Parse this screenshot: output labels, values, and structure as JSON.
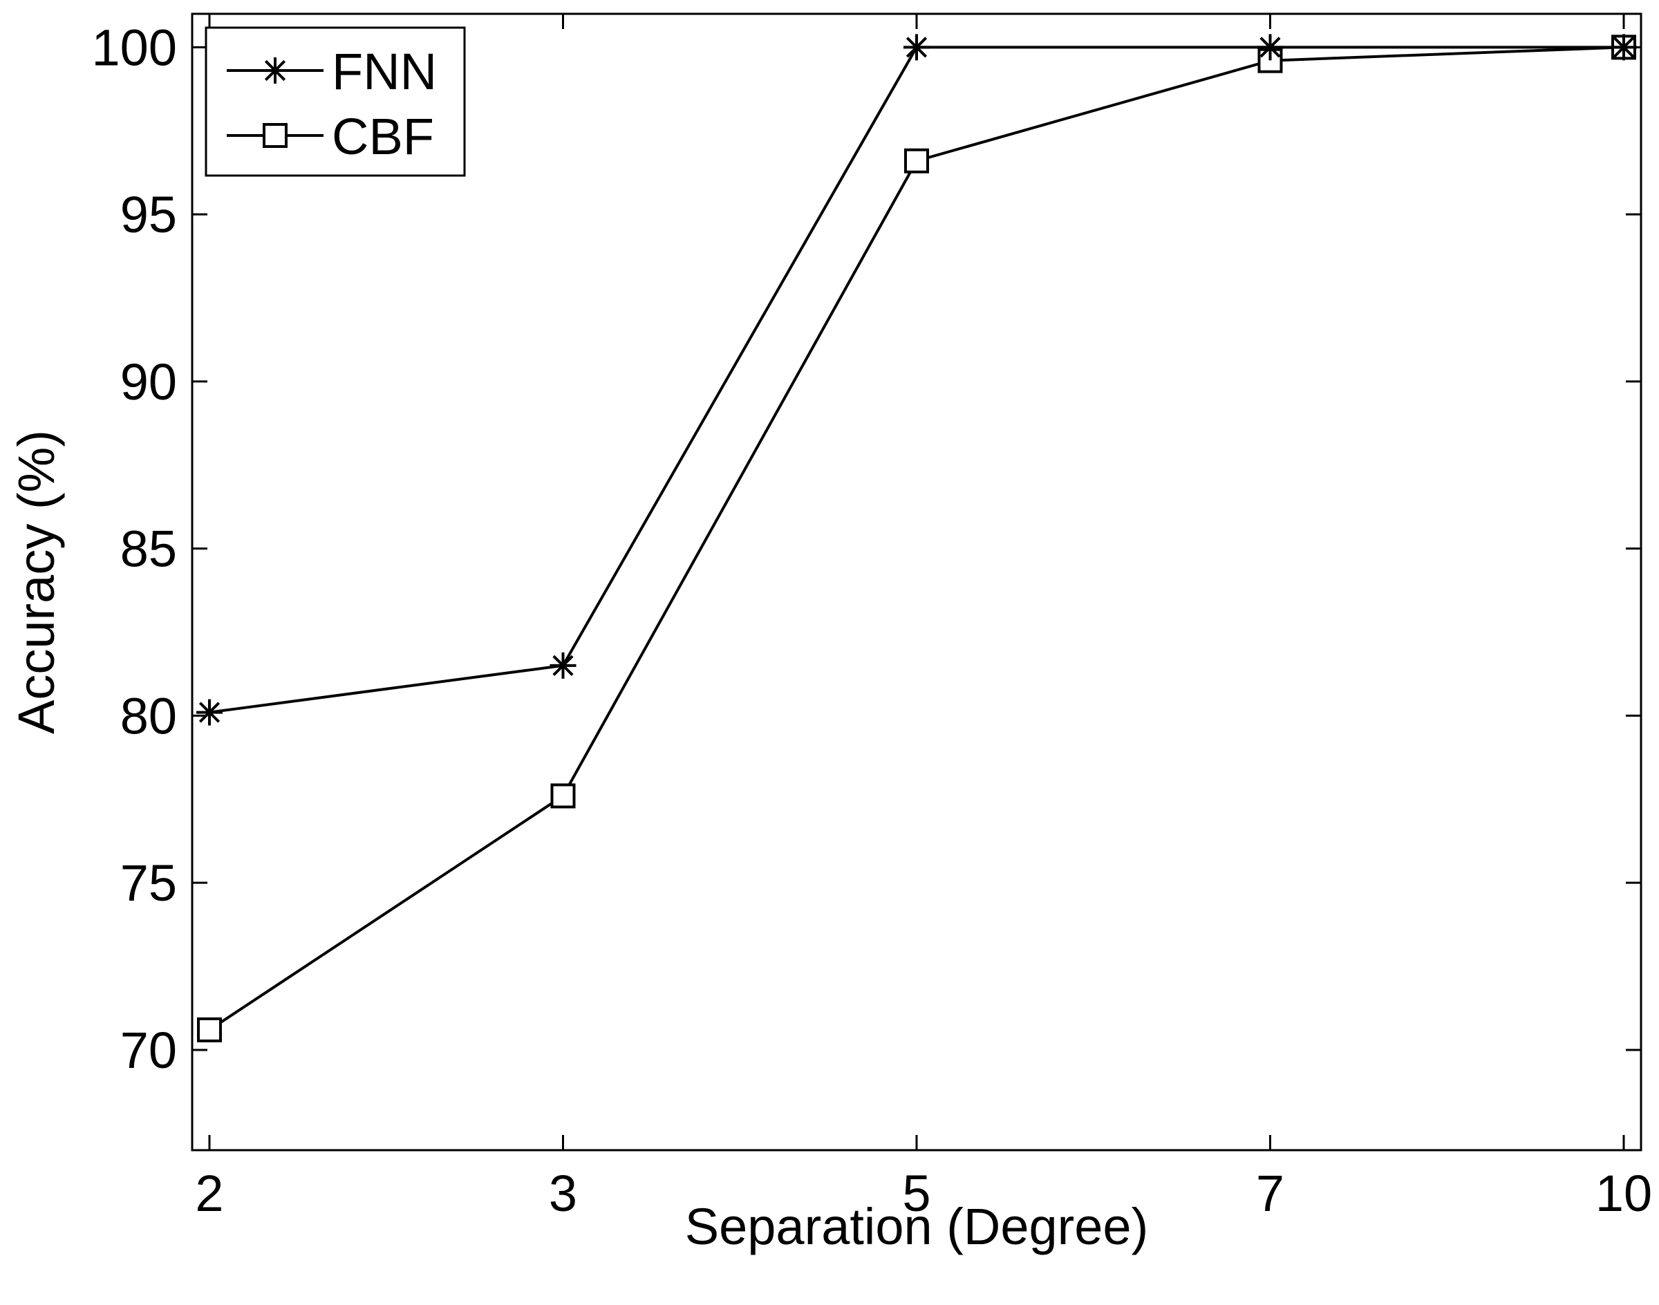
{
  "chart_data": {
    "type": "line",
    "xlabel": "Separation (Degree)",
    "ylabel": "Accuracy (%)",
    "categories": [
      "2",
      "3",
      "5",
      "7",
      "10"
    ],
    "ylim": [
      67,
      101
    ],
    "yticks": [
      70,
      75,
      80,
      85,
      90,
      95,
      100
    ],
    "grid": false,
    "legend_position": "top-left",
    "series": [
      {
        "name": "FNN",
        "marker": "asterisk",
        "color": "#000000",
        "values": [
          80.1,
          81.5,
          100,
          100,
          100
        ]
      },
      {
        "name": "CBF",
        "marker": "square",
        "color": "#000000",
        "values": [
          70.6,
          77.6,
          96.6,
          99.6,
          100
        ]
      }
    ]
  }
}
